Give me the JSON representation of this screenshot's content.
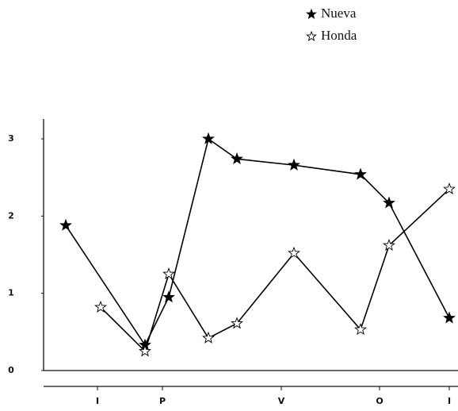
{
  "chart_data": {
    "type": "line",
    "series": [
      {
        "name": "Nueva",
        "color": "#000000",
        "marker_fill": "#000000",
        "x": [
          0.7,
          3.2,
          3.95,
          5.2,
          6.1,
          7.9,
          10,
          10.9,
          12.8
        ],
        "values": [
          1.88,
          0.33,
          0.95,
          3.0,
          2.74,
          2.66,
          2.54,
          2.17,
          0.68
        ]
      },
      {
        "name": "Honda",
        "color": "#000000",
        "marker_fill": "#ffffff",
        "x": [
          1.8,
          3.2,
          3.95,
          5.2,
          6.1,
          7.9,
          10,
          10.9,
          12.8
        ],
        "values": [
          0.82,
          0.25,
          1.25,
          0.42,
          0.61,
          1.52,
          0.53,
          1.62,
          2.35
        ]
      }
    ],
    "xlim": [
      0,
      13.075
    ],
    "xticks": [
      {
        "value": 1.7,
        "label": "I"
      },
      {
        "value": 3.75,
        "label": "P"
      },
      {
        "value": 7.5,
        "label": "V"
      },
      {
        "value": 10.6,
        "label": "O"
      },
      {
        "value": 12.8,
        "label": "I"
      }
    ],
    "ylim": [
      0,
      3.25
    ],
    "yticks": [
      0,
      1,
      2,
      3
    ],
    "legend": "top-right"
  }
}
